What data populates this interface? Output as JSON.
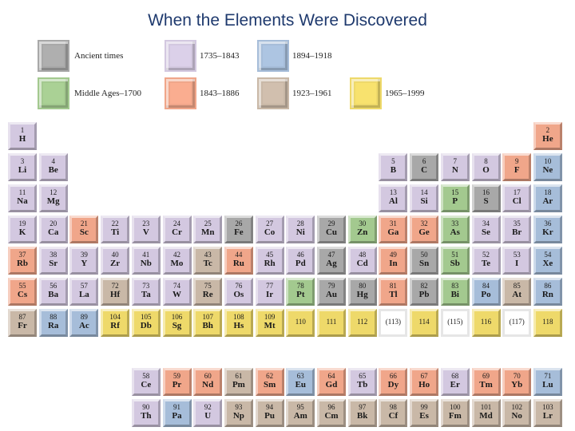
{
  "title": "When the Elements Were Discovered",
  "colors": {
    "ancient": "#a8a8a8",
    "middle": "#a3c98f",
    "p1735": "#d3c8e0",
    "p1843": "#f0a68a",
    "p1894": "#a6bdd9",
    "p1923": "#c9b8a7",
    "p1965": "#eed96a",
    "blank": "#ffffff"
  },
  "legend": [
    {
      "key": "ancient",
      "label": "Ancient times"
    },
    {
      "key": "middle",
      "label": "Middle Ages–1700"
    },
    {
      "key": "p1735",
      "label": "1735–1843"
    },
    {
      "key": "p1843",
      "label": "1843–1886"
    },
    {
      "key": "p1894",
      "label": "1894–1918"
    },
    {
      "key": "p1923",
      "label": "1923–1961"
    },
    {
      "key": "p1965",
      "label": "1965–1999"
    }
  ],
  "elements": [
    {
      "n": "1",
      "s": "H",
      "row": 1,
      "col": 1,
      "era": "p1735"
    },
    {
      "n": "2",
      "s": "He",
      "row": 1,
      "col": 18,
      "era": "p1843"
    },
    {
      "n": "3",
      "s": "Li",
      "row": 2,
      "col": 1,
      "era": "p1735"
    },
    {
      "n": "4",
      "s": "Be",
      "row": 2,
      "col": 2,
      "era": "p1735"
    },
    {
      "n": "5",
      "s": "B",
      "row": 2,
      "col": 13,
      "era": "p1735"
    },
    {
      "n": "6",
      "s": "C",
      "row": 2,
      "col": 14,
      "era": "ancient"
    },
    {
      "n": "7",
      "s": "N",
      "row": 2,
      "col": 15,
      "era": "p1735"
    },
    {
      "n": "8",
      "s": "O",
      "row": 2,
      "col": 16,
      "era": "p1735"
    },
    {
      "n": "9",
      "s": "F",
      "row": 2,
      "col": 17,
      "era": "p1843"
    },
    {
      "n": "10",
      "s": "Ne",
      "row": 2,
      "col": 18,
      "era": "p1894"
    },
    {
      "n": "11",
      "s": "Na",
      "row": 3,
      "col": 1,
      "era": "p1735"
    },
    {
      "n": "12",
      "s": "Mg",
      "row": 3,
      "col": 2,
      "era": "p1735"
    },
    {
      "n": "13",
      "s": "Al",
      "row": 3,
      "col": 13,
      "era": "p1735"
    },
    {
      "n": "14",
      "s": "Si",
      "row": 3,
      "col": 14,
      "era": "p1735"
    },
    {
      "n": "15",
      "s": "P",
      "row": 3,
      "col": 15,
      "era": "middle"
    },
    {
      "n": "16",
      "s": "S",
      "row": 3,
      "col": 16,
      "era": "ancient"
    },
    {
      "n": "17",
      "s": "Cl",
      "row": 3,
      "col": 17,
      "era": "p1735"
    },
    {
      "n": "18",
      "s": "Ar",
      "row": 3,
      "col": 18,
      "era": "p1894"
    },
    {
      "n": "19",
      "s": "K",
      "row": 4,
      "col": 1,
      "era": "p1735"
    },
    {
      "n": "20",
      "s": "Ca",
      "row": 4,
      "col": 2,
      "era": "p1735"
    },
    {
      "n": "21",
      "s": "Sc",
      "row": 4,
      "col": 3,
      "era": "p1843"
    },
    {
      "n": "22",
      "s": "Ti",
      "row": 4,
      "col": 4,
      "era": "p1735"
    },
    {
      "n": "23",
      "s": "V",
      "row": 4,
      "col": 5,
      "era": "p1735"
    },
    {
      "n": "24",
      "s": "Cr",
      "row": 4,
      "col": 6,
      "era": "p1735"
    },
    {
      "n": "25",
      "s": "Mn",
      "row": 4,
      "col": 7,
      "era": "p1735"
    },
    {
      "n": "26",
      "s": "Fe",
      "row": 4,
      "col": 8,
      "era": "ancient"
    },
    {
      "n": "27",
      "s": "Co",
      "row": 4,
      "col": 9,
      "era": "p1735"
    },
    {
      "n": "28",
      "s": "Ni",
      "row": 4,
      "col": 10,
      "era": "p1735"
    },
    {
      "n": "29",
      "s": "Cu",
      "row": 4,
      "col": 11,
      "era": "ancient"
    },
    {
      "n": "30",
      "s": "Zn",
      "row": 4,
      "col": 12,
      "era": "middle"
    },
    {
      "n": "31",
      "s": "Ga",
      "row": 4,
      "col": 13,
      "era": "p1843"
    },
    {
      "n": "32",
      "s": "Ge",
      "row": 4,
      "col": 14,
      "era": "p1843"
    },
    {
      "n": "33",
      "s": "As",
      "row": 4,
      "col": 15,
      "era": "middle"
    },
    {
      "n": "34",
      "s": "Se",
      "row": 4,
      "col": 16,
      "era": "p1735"
    },
    {
      "n": "35",
      "s": "Br",
      "row": 4,
      "col": 17,
      "era": "p1735"
    },
    {
      "n": "36",
      "s": "Kr",
      "row": 4,
      "col": 18,
      "era": "p1894"
    },
    {
      "n": "37",
      "s": "Rb",
      "row": 5,
      "col": 1,
      "era": "p1843"
    },
    {
      "n": "38",
      "s": "Sr",
      "row": 5,
      "col": 2,
      "era": "p1735"
    },
    {
      "n": "39",
      "s": "Y",
      "row": 5,
      "col": 3,
      "era": "p1735"
    },
    {
      "n": "40",
      "s": "Zr",
      "row": 5,
      "col": 4,
      "era": "p1735"
    },
    {
      "n": "41",
      "s": "Nb",
      "row": 5,
      "col": 5,
      "era": "p1735"
    },
    {
      "n": "42",
      "s": "Mo",
      "row": 5,
      "col": 6,
      "era": "p1735"
    },
    {
      "n": "43",
      "s": "Tc",
      "row": 5,
      "col": 7,
      "era": "p1923"
    },
    {
      "n": "44",
      "s": "Ru",
      "row": 5,
      "col": 8,
      "era": "p1843"
    },
    {
      "n": "45",
      "s": "Rh",
      "row": 5,
      "col": 9,
      "era": "p1735"
    },
    {
      "n": "46",
      "s": "Pd",
      "row": 5,
      "col": 10,
      "era": "p1735"
    },
    {
      "n": "47",
      "s": "Ag",
      "row": 5,
      "col": 11,
      "era": "ancient"
    },
    {
      "n": "48",
      "s": "Cd",
      "row": 5,
      "col": 12,
      "era": "p1735"
    },
    {
      "n": "49",
      "s": "In",
      "row": 5,
      "col": 13,
      "era": "p1843"
    },
    {
      "n": "50",
      "s": "Sn",
      "row": 5,
      "col": 14,
      "era": "ancient"
    },
    {
      "n": "51",
      "s": "Sb",
      "row": 5,
      "col": 15,
      "era": "middle"
    },
    {
      "n": "52",
      "s": "Te",
      "row": 5,
      "col": 16,
      "era": "p1735"
    },
    {
      "n": "53",
      "s": "I",
      "row": 5,
      "col": 17,
      "era": "p1735"
    },
    {
      "n": "54",
      "s": "Xe",
      "row": 5,
      "col": 18,
      "era": "p1894"
    },
    {
      "n": "55",
      "s": "Cs",
      "row": 6,
      "col": 1,
      "era": "p1843"
    },
    {
      "n": "56",
      "s": "Ba",
      "row": 6,
      "col": 2,
      "era": "p1735"
    },
    {
      "n": "57",
      "s": "La",
      "row": 6,
      "col": 3,
      "era": "p1735"
    },
    {
      "n": "72",
      "s": "Hf",
      "row": 6,
      "col": 4,
      "era": "p1923"
    },
    {
      "n": "73",
      "s": "Ta",
      "row": 6,
      "col": 5,
      "era": "p1735"
    },
    {
      "n": "74",
      "s": "W",
      "row": 6,
      "col": 6,
      "era": "p1735"
    },
    {
      "n": "75",
      "s": "Re",
      "row": 6,
      "col": 7,
      "era": "p1923"
    },
    {
      "n": "76",
      "s": "Os",
      "row": 6,
      "col": 8,
      "era": "p1735"
    },
    {
      "n": "77",
      "s": "Ir",
      "row": 6,
      "col": 9,
      "era": "p1735"
    },
    {
      "n": "78",
      "s": "Pt",
      "row": 6,
      "col": 10,
      "era": "middle"
    },
    {
      "n": "79",
      "s": "Au",
      "row": 6,
      "col": 11,
      "era": "ancient"
    },
    {
      "n": "80",
      "s": "Hg",
      "row": 6,
      "col": 12,
      "era": "ancient"
    },
    {
      "n": "81",
      "s": "Tl",
      "row": 6,
      "col": 13,
      "era": "p1843"
    },
    {
      "n": "82",
      "s": "Pb",
      "row": 6,
      "col": 14,
      "era": "ancient"
    },
    {
      "n": "83",
      "s": "Bi",
      "row": 6,
      "col": 15,
      "era": "middle"
    },
    {
      "n": "84",
      "s": "Po",
      "row": 6,
      "col": 16,
      "era": "p1894"
    },
    {
      "n": "85",
      "s": "At",
      "row": 6,
      "col": 17,
      "era": "p1923"
    },
    {
      "n": "86",
      "s": "Rn",
      "row": 6,
      "col": 18,
      "era": "p1894"
    },
    {
      "n": "87",
      "s": "Fr",
      "row": 7,
      "col": 1,
      "era": "p1923"
    },
    {
      "n": "88",
      "s": "Ra",
      "row": 7,
      "col": 2,
      "era": "p1894"
    },
    {
      "n": "89",
      "s": "Ac",
      "row": 7,
      "col": 3,
      "era": "p1894"
    },
    {
      "n": "104",
      "s": "Rf",
      "row": 7,
      "col": 4,
      "era": "p1965"
    },
    {
      "n": "105",
      "s": "Db",
      "row": 7,
      "col": 5,
      "era": "p1965"
    },
    {
      "n": "106",
      "s": "Sg",
      "row": 7,
      "col": 6,
      "era": "p1965"
    },
    {
      "n": "107",
      "s": "Bh",
      "row": 7,
      "col": 7,
      "era": "p1965"
    },
    {
      "n": "108",
      "s": "Hs",
      "row": 7,
      "col": 8,
      "era": "p1965"
    },
    {
      "n": "109",
      "s": "Mt",
      "row": 7,
      "col": 9,
      "era": "p1965"
    },
    {
      "n": "110",
      "s": "",
      "row": 7,
      "col": 10,
      "era": "p1965"
    },
    {
      "n": "111",
      "s": "",
      "row": 7,
      "col": 11,
      "era": "p1965"
    },
    {
      "n": "112",
      "s": "",
      "row": 7,
      "col": 12,
      "era": "p1965"
    },
    {
      "n": "(113)",
      "s": "",
      "row": 7,
      "col": 13,
      "era": "blank"
    },
    {
      "n": "114",
      "s": "",
      "row": 7,
      "col": 14,
      "era": "p1965"
    },
    {
      "n": "(115)",
      "s": "",
      "row": 7,
      "col": 15,
      "era": "blank"
    },
    {
      "n": "116",
      "s": "",
      "row": 7,
      "col": 16,
      "era": "p1965"
    },
    {
      "n": "(117)",
      "s": "",
      "row": 7,
      "col": 17,
      "era": "blank"
    },
    {
      "n": "118",
      "s": "",
      "row": 7,
      "col": 18,
      "era": "p1965"
    },
    {
      "n": "58",
      "s": "Ce",
      "row": 8,
      "col": 5,
      "era": "p1735"
    },
    {
      "n": "59",
      "s": "Pr",
      "row": 8,
      "col": 6,
      "era": "p1843"
    },
    {
      "n": "60",
      "s": "Nd",
      "row": 8,
      "col": 7,
      "era": "p1843"
    },
    {
      "n": "61",
      "s": "Pm",
      "row": 8,
      "col": 8,
      "era": "p1923"
    },
    {
      "n": "62",
      "s": "Sm",
      "row": 8,
      "col": 9,
      "era": "p1843"
    },
    {
      "n": "63",
      "s": "Eu",
      "row": 8,
      "col": 10,
      "era": "p1894"
    },
    {
      "n": "64",
      "s": "Gd",
      "row": 8,
      "col": 11,
      "era": "p1843"
    },
    {
      "n": "65",
      "s": "Tb",
      "row": 8,
      "col": 12,
      "era": "p1735"
    },
    {
      "n": "66",
      "s": "Dy",
      "row": 8,
      "col": 13,
      "era": "p1843"
    },
    {
      "n": "67",
      "s": "Ho",
      "row": 8,
      "col": 14,
      "era": "p1843"
    },
    {
      "n": "68",
      "s": "Er",
      "row": 8,
      "col": 15,
      "era": "p1735"
    },
    {
      "n": "69",
      "s": "Tm",
      "row": 8,
      "col": 16,
      "era": "p1843"
    },
    {
      "n": "70",
      "s": "Yb",
      "row": 8,
      "col": 17,
      "era": "p1843"
    },
    {
      "n": "71",
      "s": "Lu",
      "row": 8,
      "col": 18,
      "era": "p1894"
    },
    {
      "n": "90",
      "s": "Th",
      "row": 9,
      "col": 5,
      "era": "p1735"
    },
    {
      "n": "91",
      "s": "Pa",
      "row": 9,
      "col": 6,
      "era": "p1894"
    },
    {
      "n": "92",
      "s": "U",
      "row": 9,
      "col": 7,
      "era": "p1735"
    },
    {
      "n": "93",
      "s": "Np",
      "row": 9,
      "col": 8,
      "era": "p1923"
    },
    {
      "n": "94",
      "s": "Pu",
      "row": 9,
      "col": 9,
      "era": "p1923"
    },
    {
      "n": "95",
      "s": "Am",
      "row": 9,
      "col": 10,
      "era": "p1923"
    },
    {
      "n": "96",
      "s": "Cm",
      "row": 9,
      "col": 11,
      "era": "p1923"
    },
    {
      "n": "97",
      "s": "Bk",
      "row": 9,
      "col": 12,
      "era": "p1923"
    },
    {
      "n": "98",
      "s": "Cf",
      "row": 9,
      "col": 13,
      "era": "p1923"
    },
    {
      "n": "99",
      "s": "Es",
      "row": 9,
      "col": 14,
      "era": "p1923"
    },
    {
      "n": "100",
      "s": "Fm",
      "row": 9,
      "col": 15,
      "era": "p1923"
    },
    {
      "n": "101",
      "s": "Md",
      "row": 9,
      "col": 16,
      "era": "p1923"
    },
    {
      "n": "102",
      "s": "No",
      "row": 9,
      "col": 17,
      "era": "p1923"
    },
    {
      "n": "103",
      "s": "Lr",
      "row": 9,
      "col": 18,
      "era": "p1923"
    }
  ]
}
